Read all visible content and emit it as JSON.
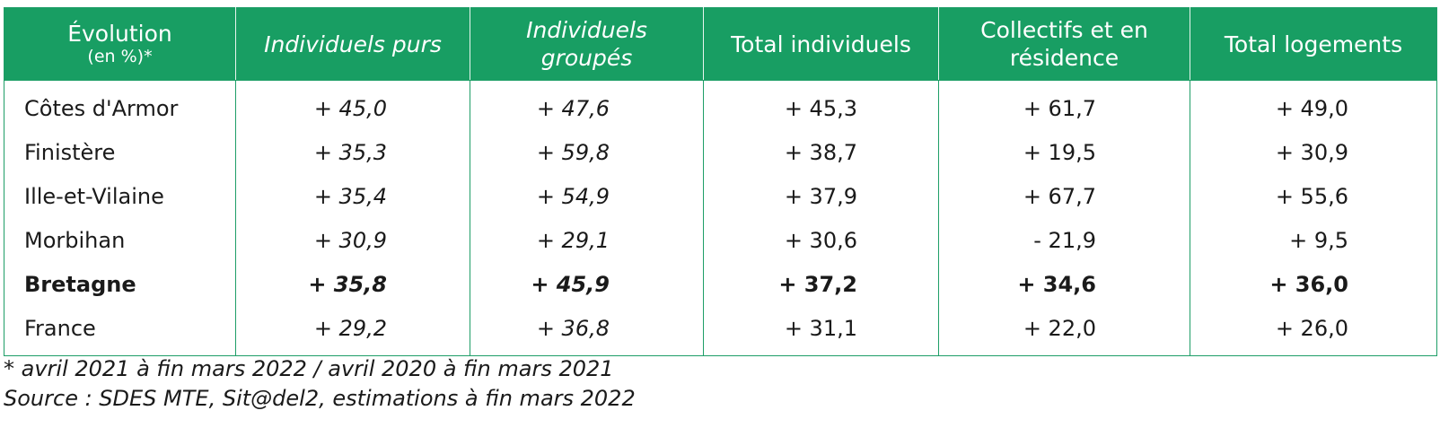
{
  "colors": {
    "header_bg": "#189e63",
    "header_text": "#ffffff",
    "border": "#1e9e67"
  },
  "table": {
    "headers": {
      "col0_line1": "Évolution",
      "col0_line2": "(en %)*",
      "col1": "Individuels purs",
      "col2_line1": "Individuels",
      "col2_line2": "groupés",
      "col3": "Total individuels",
      "col4_line1": "Collectifs et en",
      "col4_line2": "résidence",
      "col5": "Total logements"
    },
    "rows": [
      {
        "name": "Côtes d'Armor",
        "v": [
          "+ 45,0",
          "+ 47,6",
          "+ 45,3",
          "+ 61,7",
          "+ 49,0"
        ]
      },
      {
        "name": "Finistère",
        "v": [
          "+ 35,3",
          "+ 59,8",
          "+ 38,7",
          "+ 19,5",
          "+ 30,9"
        ]
      },
      {
        "name": "Ille-et-Vilaine",
        "v": [
          "+ 35,4",
          "+ 54,9",
          "+ 37,9",
          "+ 67,7",
          "+ 55,6"
        ]
      },
      {
        "name": "Morbihan",
        "v": [
          "+ 30,9",
          "+ 29,1",
          "+ 30,6",
          "- 21,9",
          "+ 9,5"
        ]
      },
      {
        "name": "Bretagne",
        "v": [
          "+ 35,8",
          "+ 45,9",
          "+ 37,2",
          "+ 34,6",
          "+ 36,0"
        ]
      },
      {
        "name": "France",
        "v": [
          "+ 29,2",
          "+ 36,8",
          "+ 31,1",
          "+ 22,0",
          "+ 26,0"
        ]
      }
    ]
  },
  "footnotes": {
    "period": "* avril 2021 à fin mars 2022 / avril 2020 à fin mars 2021",
    "source": "Source : SDES MTE, Sit@del2, estimations à fin mars 2022"
  }
}
